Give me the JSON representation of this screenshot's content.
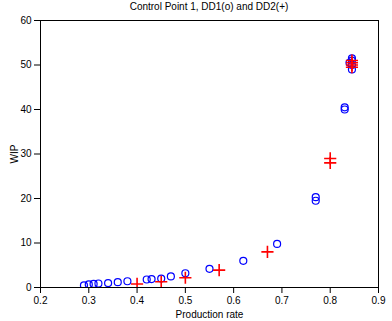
{
  "chart_data": {
    "type": "scatter",
    "title": "Control Point 1, DD1(o) and DD2(+)",
    "x_label": "Production rate",
    "y_label": "WIP",
    "xlim": [
      0.2,
      0.9
    ],
    "xticks": [
      0.2,
      0.3,
      0.4,
      0.5,
      0.6,
      0.7,
      0.8,
      0.9
    ],
    "ylim": [
      0,
      60
    ],
    "yticks": [
      0,
      10,
      20,
      30,
      40,
      50,
      60
    ],
    "grid": false,
    "series": [
      {
        "name": "DD1",
        "color": "#0000ff",
        "marker": "circle",
        "x": [
          0.29,
          0.3,
          0.31,
          0.32,
          0.34,
          0.36,
          0.38,
          0.42,
          0.43,
          0.45,
          0.47,
          0.5,
          0.55,
          0.62,
          0.69,
          0.77,
          0.77,
          0.83,
          0.83,
          0.845,
          0.845,
          0.845,
          0.84,
          0.845
        ],
        "values": [
          0.5,
          0.7,
          0.8,
          0.9,
          1.0,
          1.2,
          1.4,
          1.8,
          1.9,
          2.0,
          2.5,
          3.2,
          4.2,
          6.0,
          9.8,
          19.5,
          20.3,
          40.0,
          40.5,
          49.0,
          50.0,
          51.0,
          50.5,
          51.5
        ]
      },
      {
        "name": "DD2",
        "color": "#ff0000",
        "marker": "plus",
        "x": [
          0.4,
          0.45,
          0.5,
          0.57,
          0.67,
          0.8,
          0.8,
          0.845,
          0.845,
          0.845,
          0.845
        ],
        "values": [
          0.8,
          1.3,
          2.2,
          3.9,
          8.0,
          28.0,
          29.0,
          49.5,
          50.0,
          50.5,
          51.0
        ]
      }
    ]
  }
}
